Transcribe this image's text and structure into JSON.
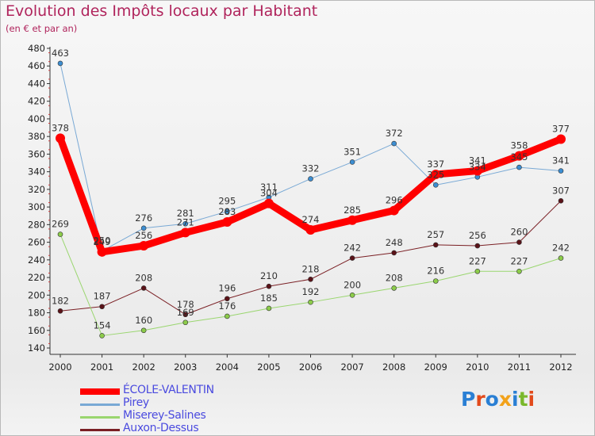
{
  "title": "Evolution des Impôts locaux par Habitant",
  "subtitle": "(en € et par an)",
  "logo_text": "Proxiti",
  "logo_colors": [
    "#2a7fd4",
    "#e24a1b",
    "#2a7fd4",
    "#f2a21a",
    "#2a7fd4",
    "#7ab82c",
    "#e24a1b"
  ],
  "chart_data": {
    "type": "line",
    "x": [
      "2000",
      "2001",
      "2002",
      "2003",
      "2004",
      "2005",
      "2006",
      "2007",
      "2008",
      "2009",
      "2010",
      "2011",
      "2012"
    ],
    "ylim": [
      140,
      480
    ],
    "yticks": [
      140,
      160,
      180,
      200,
      220,
      240,
      260,
      280,
      300,
      320,
      340,
      360,
      380,
      400,
      420,
      440,
      460,
      480
    ],
    "grid": false,
    "legend_position": "bottom-left",
    "series": [
      {
        "name": "Auxon-Dessus",
        "color": "#7a1f24",
        "marker": "#5a1218",
        "width": 1,
        "values": [
          182,
          187,
          208,
          178,
          196,
          210,
          218,
          242,
          248,
          257,
          256,
          260,
          307
        ]
      },
      {
        "name": "Miserey-Salines",
        "color": "#9ad66f",
        "marker": "#8ccc4a",
        "width": 1,
        "values": [
          269,
          154,
          160,
          169,
          176,
          185,
          192,
          200,
          208,
          216,
          227,
          227,
          242
        ]
      },
      {
        "name": "Pirey",
        "color": "#79a9d5",
        "marker": "#3c8ed2",
        "width": 1,
        "values": [
          463,
          250,
          276,
          281,
          295,
          311,
          332,
          351,
          372,
          325,
          334,
          345,
          341
        ]
      },
      {
        "name": "ÉCOLE-VALENTIN",
        "color": "#ff0000",
        "marker": "#ff0000",
        "width": 9,
        "values": [
          378,
          249,
          256,
          271,
          283,
          304,
          274,
          285,
          296,
          337,
          341,
          358,
          377
        ]
      }
    ],
    "legend_order": [
      "ÉCOLE-VALENTIN",
      "Pirey",
      "Miserey-Salines",
      "Auxon-Dessus"
    ]
  }
}
